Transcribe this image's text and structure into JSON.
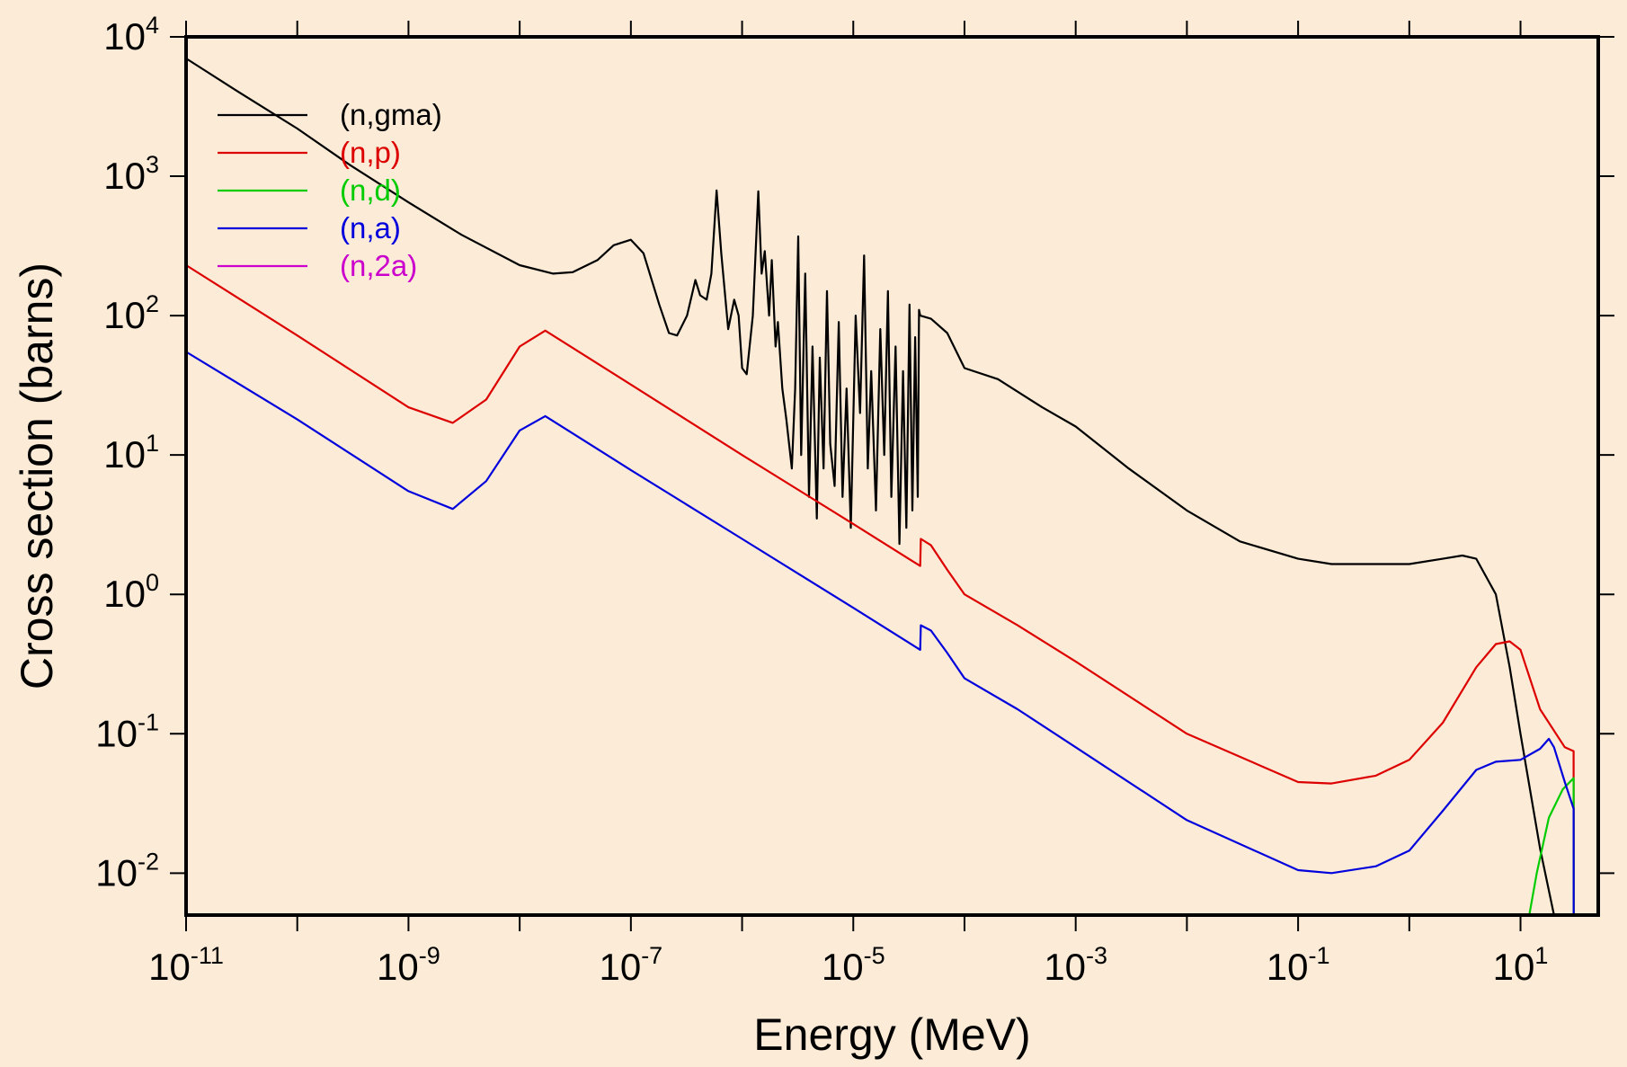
{
  "chart_data": {
    "type": "line",
    "title": "",
    "xlabel": "Energy (MeV)",
    "ylabel": "Cross section (barns)",
    "xscale": "log",
    "yscale": "log",
    "xlim": [
      1e-11,
      50
    ],
    "ylim": [
      0.005,
      10000
    ],
    "grid": false,
    "legend_position": "top-left",
    "x_tick_labels": [
      {
        "base": "10",
        "exp": "-11",
        "value": 1e-11
      },
      {
        "base": "10",
        "exp": "-9",
        "value": 1e-09
      },
      {
        "base": "10",
        "exp": "-7",
        "value": 1e-07
      },
      {
        "base": "10",
        "exp": "-5",
        "value": 1e-05
      },
      {
        "base": "10",
        "exp": "-3",
        "value": 0.001
      },
      {
        "base": "10",
        "exp": "-1",
        "value": 0.1
      },
      {
        "base": "10",
        "exp": "1",
        "value": 10
      }
    ],
    "y_tick_labels": [
      {
        "base": "10",
        "exp": "4",
        "value": 10000
      },
      {
        "base": "10",
        "exp": "3",
        "value": 1000
      },
      {
        "base": "10",
        "exp": "2",
        "value": 100
      },
      {
        "base": "10",
        "exp": "1",
        "value": 10
      },
      {
        "base": "10",
        "exp": "0",
        "value": 1
      },
      {
        "base": "10",
        "exp": "-1",
        "value": 0.1
      },
      {
        "base": "10",
        "exp": "-2",
        "value": 0.01
      }
    ],
    "series": [
      {
        "name": "(n,gma)",
        "color": "#000000",
        "points": [
          [
            1e-11,
            7000
          ],
          [
            3e-11,
            4000
          ],
          [
            1e-10,
            2200
          ],
          [
            3e-10,
            1200
          ],
          [
            1e-09,
            650
          ],
          [
            3e-09,
            380
          ],
          [
            1e-08,
            230
          ],
          [
            2e-08,
            200
          ],
          [
            3e-08,
            205
          ],
          [
            5e-08,
            250
          ],
          [
            7e-08,
            320
          ],
          [
            1e-07,
            350
          ],
          [
            1.3e-07,
            280
          ],
          [
            1.8e-07,
            120
          ],
          [
            2.2e-07,
            75
          ],
          [
            2.6e-07,
            72
          ],
          [
            3.2e-07,
            100
          ],
          [
            3.8e-07,
            180
          ],
          [
            4.2e-07,
            140
          ],
          [
            4.8e-07,
            130
          ],
          [
            5.3e-07,
            200
          ],
          [
            5.9e-07,
            790
          ],
          [
            6.5e-07,
            280
          ],
          [
            7.5e-07,
            80
          ],
          [
            8.5e-07,
            130
          ],
          [
            9.3e-07,
            100
          ],
          [
            1e-06,
            42
          ],
          [
            1.1e-06,
            38
          ],
          [
            1.25e-06,
            100
          ],
          [
            1.4e-06,
            780
          ],
          [
            1.5e-06,
            200
          ],
          [
            1.6e-06,
            290
          ],
          [
            1.75e-06,
            100
          ],
          [
            1.85e-06,
            250
          ],
          [
            2e-06,
            60
          ],
          [
            2.1e-06,
            90
          ],
          [
            2.3e-06,
            30
          ],
          [
            2.5e-06,
            18
          ],
          [
            2.8e-06,
            8
          ],
          [
            3e-06,
            30
          ],
          [
            3.2e-06,
            370
          ],
          [
            3.4e-06,
            10
          ],
          [
            3.7e-06,
            200
          ],
          [
            4e-06,
            5
          ],
          [
            4.3e-06,
            60
          ],
          [
            4.7e-06,
            3.5
          ],
          [
            5e-06,
            50
          ],
          [
            5.4e-06,
            8
          ],
          [
            5.8e-06,
            150
          ],
          [
            6.2e-06,
            12
          ],
          [
            6.8e-06,
            6
          ],
          [
            7.4e-06,
            90
          ],
          [
            8e-06,
            5
          ],
          [
            8.7e-06,
            30
          ],
          [
            9.5e-06,
            3
          ],
          [
            1.05e-05,
            100
          ],
          [
            1.15e-05,
            20
          ],
          [
            1.25e-05,
            270
          ],
          [
            1.35e-05,
            8
          ],
          [
            1.45e-05,
            40
          ],
          [
            1.6e-05,
            4
          ],
          [
            1.75e-05,
            80
          ],
          [
            1.9e-05,
            10
          ],
          [
            2.05e-05,
            150
          ],
          [
            2.2e-05,
            5
          ],
          [
            2.4e-05,
            60
          ],
          [
            2.6e-05,
            2.3
          ],
          [
            2.8e-05,
            40
          ],
          [
            3e-05,
            3
          ],
          [
            3.2e-05,
            120
          ],
          [
            3.4e-05,
            4
          ],
          [
            3.6e-05,
            70
          ],
          [
            3.8e-05,
            5
          ],
          [
            3.9e-05,
            110
          ],
          [
            4e-05,
            100
          ],
          [
            5e-05,
            95
          ],
          [
            7e-05,
            75
          ],
          [
            0.0001,
            42
          ],
          [
            0.0002,
            35
          ],
          [
            0.0005,
            22
          ],
          [
            0.001,
            16
          ],
          [
            0.003,
            8
          ],
          [
            0.01,
            4
          ],
          [
            0.03,
            2.4
          ],
          [
            0.1,
            1.8
          ],
          [
            0.2,
            1.65
          ],
          [
            0.5,
            1.65
          ],
          [
            1,
            1.65
          ],
          [
            2,
            1.8
          ],
          [
            3,
            1.9
          ],
          [
            4,
            1.8
          ],
          [
            6,
            1.0
          ],
          [
            8,
            0.3
          ],
          [
            10,
            0.1
          ],
          [
            15,
            0.015
          ],
          [
            20,
            0.005
          ]
        ]
      },
      {
        "name": "(n,p)",
        "color": "#dd0000",
        "points": [
          [
            1e-11,
            230
          ],
          [
            1e-10,
            72
          ],
          [
            1e-09,
            22
          ],
          [
            2.5e-09,
            17
          ],
          [
            5e-09,
            25
          ],
          [
            1e-08,
            60
          ],
          [
            1.7e-08,
            78
          ],
          [
            1e-07,
            32
          ],
          [
            1e-06,
            10
          ],
          [
            1e-05,
            3.2
          ],
          [
            4e-05,
            1.6
          ],
          [
            4.05e-05,
            2.5
          ],
          [
            5e-05,
            2.25
          ],
          [
            7e-05,
            1.5
          ],
          [
            0.0001,
            1.0
          ],
          [
            0.0003,
            0.6
          ],
          [
            0.001,
            0.33
          ],
          [
            0.01,
            0.1
          ],
          [
            0.1,
            0.045
          ],
          [
            0.2,
            0.044
          ],
          [
            0.5,
            0.05
          ],
          [
            1,
            0.065
          ],
          [
            2,
            0.12
          ],
          [
            4,
            0.3
          ],
          [
            6,
            0.44
          ],
          [
            8,
            0.46
          ],
          [
            10,
            0.4
          ],
          [
            15,
            0.15
          ],
          [
            25,
            0.08
          ],
          [
            30,
            0.075
          ],
          [
            30.1,
            0.005
          ]
        ]
      },
      {
        "name": "(n,d)",
        "color": "#00cc00",
        "points": [
          [
            12,
            0.005
          ],
          [
            14,
            0.01
          ],
          [
            18,
            0.025
          ],
          [
            24,
            0.04
          ],
          [
            30,
            0.048
          ],
          [
            30.1,
            0.005
          ]
        ]
      },
      {
        "name": "(n,a)",
        "color": "#0000dd",
        "points": [
          [
            1e-11,
            55
          ],
          [
            1e-10,
            18
          ],
          [
            1e-09,
            5.5
          ],
          [
            2.5e-09,
            4.1
          ],
          [
            5e-09,
            6.5
          ],
          [
            1e-08,
            15
          ],
          [
            1.7e-08,
            19
          ],
          [
            1e-07,
            7.8
          ],
          [
            1e-06,
            2.5
          ],
          [
            1e-05,
            0.8
          ],
          [
            4e-05,
            0.4
          ],
          [
            4.05e-05,
            0.6
          ],
          [
            5e-05,
            0.55
          ],
          [
            7e-05,
            0.38
          ],
          [
            0.0001,
            0.25
          ],
          [
            0.0003,
            0.15
          ],
          [
            0.001,
            0.08
          ],
          [
            0.01,
            0.024
          ],
          [
            0.1,
            0.0105
          ],
          [
            0.2,
            0.01
          ],
          [
            0.5,
            0.0112
          ],
          [
            1,
            0.0145
          ],
          [
            2,
            0.028
          ],
          [
            4,
            0.055
          ],
          [
            6,
            0.063
          ],
          [
            10,
            0.065
          ],
          [
            15,
            0.078
          ],
          [
            18,
            0.092
          ],
          [
            20,
            0.08
          ],
          [
            25,
            0.045
          ],
          [
            30,
            0.029
          ],
          [
            30.1,
            0.005
          ]
        ]
      },
      {
        "name": "(n,2a)",
        "color": "#cc00cc",
        "points": [
          [
            1e-11,
            0.005
          ],
          [
            50,
            0.005
          ]
        ]
      }
    ]
  },
  "colors": {
    "background": "#fbebd7",
    "axis": "#000000"
  }
}
